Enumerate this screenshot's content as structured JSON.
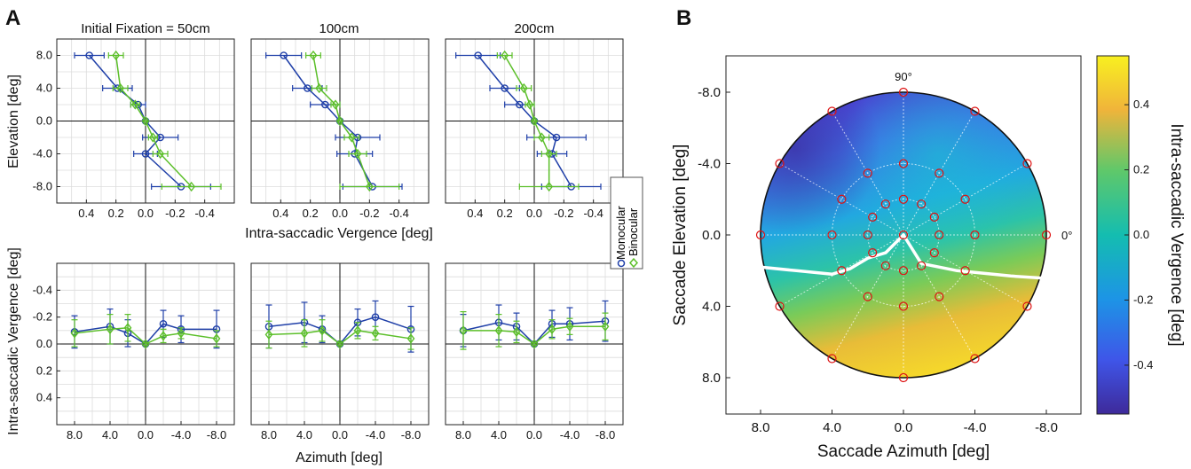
{
  "panel_letters": {
    "a": "A",
    "b": "B"
  },
  "colors": {
    "monocular": "#1f3fa8",
    "binocular": "#5cbf2a",
    "target": "#dd1111",
    "grid": "#dcdcdc"
  },
  "legend": {
    "monocular": "Monocular",
    "binocular": "Binocular"
  },
  "panel_a": {
    "titles": [
      "Initial Fixation = 50cm",
      "100cm",
      "200cm"
    ],
    "top_ylabel": "Elevation [deg]",
    "top_xlabel": "Intra-saccadic Vergence [deg]",
    "top_yticks": [
      "-8.0",
      "-4.0",
      "0.0",
      "4.0",
      "8.0"
    ],
    "top_xticks": [
      "0.4",
      "0.2",
      "0.0",
      "-0.2",
      "-0.4"
    ],
    "bottom_ylabel": "Intra-saccadic Vergence [deg]",
    "bottom_xlabel": "Azimuth [deg]",
    "bottom_yticks": [
      "-0.4",
      "-0.2",
      "0.0",
      "0.2",
      "0.4"
    ],
    "bottom_xticks": [
      "8.0",
      "4.0",
      "0.0",
      "-4.0",
      "-8.0"
    ]
  },
  "panel_b": {
    "xlabel": "Saccade Azimuth [deg]",
    "ylabel": "Saccade Elevation [deg]",
    "xticks": [
      "8.0",
      "4.0",
      "0.0",
      "-4.0",
      "-8.0"
    ],
    "yticks": [
      "-8.0",
      "-4.0",
      "0.0",
      "4.0",
      "8.0"
    ],
    "angle_labels": [
      "90°",
      "0°"
    ],
    "colorbar_label": "Intra-saccadic Vergence [deg]",
    "colorbar_ticks": [
      "0.4",
      "0.2",
      "0.0",
      "-0.2",
      "-0.4"
    ]
  },
  "chart_data": [
    {
      "type": "line",
      "panel": "A-top",
      "title": "Initial Fixation = 50cm",
      "xlabel": "Intra-saccadic Vergence [deg]",
      "ylabel": "Elevation [deg]",
      "xlim": [
        0.6,
        -0.6
      ],
      "ylim": [
        10,
        -10
      ],
      "series": [
        {
          "name": "Monocular",
          "x": [
            0.38,
            0.19,
            0.05,
            0.0,
            -0.1,
            0.0,
            -0.24
          ],
          "y": [
            8,
            4,
            2,
            0,
            -2,
            -4,
            -8
          ],
          "xerr": [
            0.1,
            0.1,
            0.05,
            0.01,
            0.12,
            0.08,
            0.2
          ]
        },
        {
          "name": "Binocular",
          "x": [
            0.2,
            0.17,
            0.07,
            0.0,
            -0.05,
            -0.1,
            -0.31
          ],
          "y": [
            8,
            4,
            2,
            0,
            -2,
            -4,
            -8
          ],
          "xerr": [
            0.05,
            0.05,
            0.03,
            0.01,
            0.03,
            0.05,
            0.2
          ]
        }
      ]
    },
    {
      "type": "line",
      "panel": "A-top",
      "title": "100cm",
      "xlim": [
        0.6,
        -0.6
      ],
      "ylim": [
        10,
        -10
      ],
      "series": [
        {
          "name": "Monocular",
          "x": [
            0.38,
            0.22,
            0.1,
            0.0,
            -0.12,
            -0.1,
            -0.22
          ],
          "y": [
            8,
            4,
            2,
            0,
            -2,
            -4,
            -8
          ],
          "xerr": [
            0.12,
            0.1,
            0.1,
            0.01,
            0.15,
            0.12,
            0.2
          ]
        },
        {
          "name": "Binocular",
          "x": [
            0.18,
            0.14,
            0.03,
            0.0,
            -0.08,
            -0.12,
            -0.2
          ],
          "y": [
            8,
            4,
            2,
            0,
            -2,
            -4,
            -8
          ],
          "xerr": [
            0.05,
            0.05,
            0.03,
            0.01,
            0.05,
            0.06,
            0.2
          ]
        }
      ]
    },
    {
      "type": "line",
      "panel": "A-top",
      "title": "200cm",
      "xlim": [
        0.6,
        -0.6
      ],
      "ylim": [
        10,
        -10
      ],
      "series": [
        {
          "name": "Monocular",
          "x": [
            0.38,
            0.2,
            0.1,
            0.0,
            -0.15,
            -0.12,
            -0.25
          ],
          "y": [
            8,
            4,
            2,
            0,
            -2,
            -4,
            -8
          ],
          "xerr": [
            0.15,
            0.1,
            0.1,
            0.01,
            0.2,
            0.1,
            0.2
          ]
        },
        {
          "name": "Binocular",
          "x": [
            0.2,
            0.07,
            0.03,
            0.0,
            -0.05,
            -0.1,
            -0.1
          ],
          "y": [
            8,
            4,
            2,
            0,
            -2,
            -4,
            -8
          ],
          "xerr": [
            0.05,
            0.05,
            0.03,
            0.01,
            0.05,
            0.05,
            0.2
          ]
        }
      ]
    },
    {
      "type": "line",
      "panel": "A-bottom",
      "title": "50cm",
      "xlabel": "Azimuth [deg]",
      "ylabel": "Intra-saccadic Vergence [deg]",
      "xlim": [
        10,
        -10
      ],
      "ylim": [
        -0.6,
        0.6
      ],
      "series": [
        {
          "name": "Monocular",
          "x": [
            8,
            4,
            2,
            0,
            -2,
            -4,
            -8
          ],
          "y": [
            -0.09,
            -0.13,
            -0.08,
            0.0,
            -0.15,
            -0.11,
            -0.11
          ],
          "yerr": [
            0.12,
            0.13,
            0.1,
            0.01,
            0.1,
            0.1,
            0.14
          ]
        },
        {
          "name": "Binocular",
          "x": [
            8,
            4,
            2,
            0,
            -2,
            -4,
            -8
          ],
          "y": [
            -0.08,
            -0.11,
            -0.12,
            0.0,
            -0.06,
            -0.08,
            -0.04
          ],
          "yerr": [
            0.1,
            0.11,
            0.1,
            0.01,
            0.05,
            0.04,
            0.06
          ]
        }
      ]
    },
    {
      "type": "line",
      "panel": "A-bottom",
      "title": "100cm",
      "xlim": [
        10,
        -10
      ],
      "ylim": [
        -0.6,
        0.6
      ],
      "series": [
        {
          "name": "Monocular",
          "x": [
            8,
            4,
            2,
            0,
            -2,
            -4,
            -8
          ],
          "y": [
            -0.13,
            -0.16,
            -0.11,
            0.0,
            -0.16,
            -0.2,
            -0.11
          ],
          "yerr": [
            0.16,
            0.15,
            0.1,
            0.01,
            0.1,
            0.12,
            0.17
          ]
        },
        {
          "name": "Binocular",
          "x": [
            8,
            4,
            2,
            0,
            -2,
            -4,
            -8
          ],
          "y": [
            -0.07,
            -0.08,
            -0.1,
            0.0,
            -0.1,
            -0.08,
            -0.04
          ],
          "yerr": [
            0.1,
            0.1,
            0.08,
            0.01,
            0.06,
            0.05,
            0.08
          ]
        }
      ]
    },
    {
      "type": "line",
      "panel": "A-bottom",
      "title": "200cm",
      "xlim": [
        10,
        -10
      ],
      "ylim": [
        -0.6,
        0.6
      ],
      "series": [
        {
          "name": "Monocular",
          "x": [
            8,
            4,
            2,
            0,
            -2,
            -4,
            -8
          ],
          "y": [
            -0.1,
            -0.16,
            -0.13,
            0.0,
            -0.15,
            -0.15,
            -0.17
          ],
          "yerr": [
            0.12,
            0.13,
            0.1,
            0.01,
            0.1,
            0.12,
            0.15
          ]
        },
        {
          "name": "Binocular",
          "x": [
            8,
            4,
            2,
            0,
            -2,
            -4,
            -8
          ],
          "y": [
            -0.1,
            -0.1,
            -0.09,
            0.0,
            -0.11,
            -0.13,
            -0.13
          ],
          "yerr": [
            0.14,
            0.12,
            0.08,
            0.01,
            0.07,
            0.06,
            0.1
          ]
        }
      ]
    },
    {
      "type": "heatmap",
      "panel": "B",
      "xlabel": "Saccade Azimuth [deg]",
      "ylabel": "Saccade Elevation [deg]",
      "xlim": [
        10,
        -10
      ],
      "ylim": [
        -10,
        10
      ],
      "clim": [
        -0.55,
        0.55
      ],
      "targets": [
        {
          "az": 0,
          "el": 0
        },
        {
          "az": 2,
          "el": 0
        },
        {
          "az": 1.73,
          "el": -1
        },
        {
          "az": 1,
          "el": -1.73
        },
        {
          "az": 0,
          "el": -2
        },
        {
          "az": -1,
          "el": -1.73
        },
        {
          "az": -1.73,
          "el": -1
        },
        {
          "az": -2,
          "el": 0
        },
        {
          "az": -1.73,
          "el": 1
        },
        {
          "az": -1,
          "el": 1.73
        },
        {
          "az": 0,
          "el": 2
        },
        {
          "az": 1,
          "el": 1.73
        },
        {
          "az": 1.73,
          "el": 1
        },
        {
          "az": 4,
          "el": 0
        },
        {
          "az": 3.46,
          "el": -2
        },
        {
          "az": 2,
          "el": -3.46
        },
        {
          "az": 0,
          "el": -4
        },
        {
          "az": -2,
          "el": -3.46
        },
        {
          "az": -3.46,
          "el": -2
        },
        {
          "az": -4,
          "el": 0
        },
        {
          "az": -3.46,
          "el": 2
        },
        {
          "az": -2,
          "el": 3.46
        },
        {
          "az": 0,
          "el": 4
        },
        {
          "az": 2,
          "el": 3.46
        },
        {
          "az": 3.46,
          "el": 2
        },
        {
          "az": 8,
          "el": 0
        },
        {
          "az": 6.93,
          "el": -4
        },
        {
          "az": 4,
          "el": -6.93
        },
        {
          "az": 0,
          "el": -8
        },
        {
          "az": -4,
          "el": -6.93
        },
        {
          "az": -6.93,
          "el": -4
        },
        {
          "az": -8,
          "el": 0
        },
        {
          "az": -6.93,
          "el": 4
        },
        {
          "az": -4,
          "el": 6.93
        },
        {
          "az": 0,
          "el": 8
        },
        {
          "az": 4,
          "el": 6.93
        },
        {
          "az": 6.93,
          "el": 4
        }
      ],
      "zero_contour": [
        {
          "az": 9,
          "el": 1.7
        },
        {
          "az": 6,
          "el": 2.0
        },
        {
          "az": 4,
          "el": 2.2
        },
        {
          "az": 3,
          "el": 1.9
        },
        {
          "az": 2,
          "el": 1.3
        },
        {
          "az": 1,
          "el": 1.0
        },
        {
          "az": 0,
          "el": 0
        },
        {
          "az": -1,
          "el": 1.6
        },
        {
          "az": -3,
          "el": 2.0
        },
        {
          "az": -6,
          "el": 2.3
        },
        {
          "az": -9,
          "el": 2.5
        }
      ]
    }
  ]
}
